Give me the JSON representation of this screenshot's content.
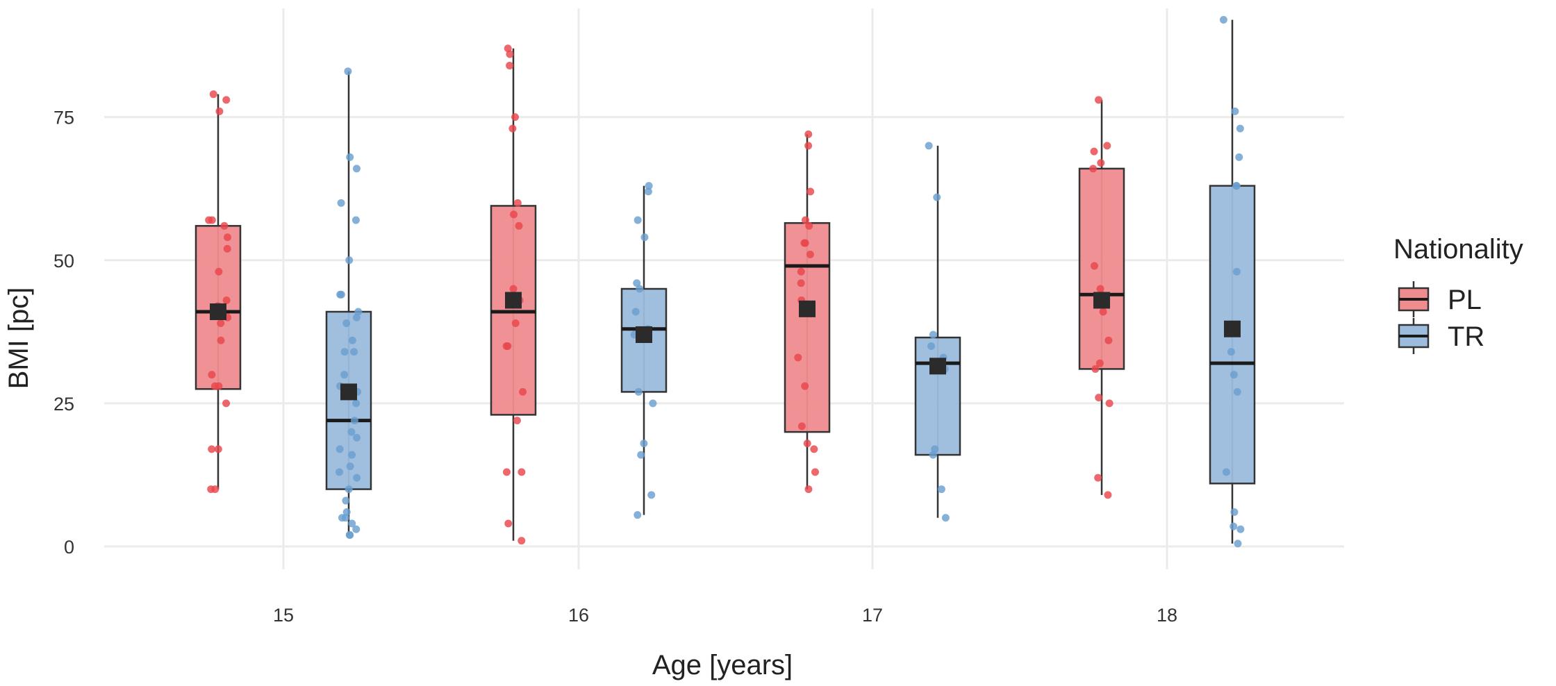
{
  "chart_data": {
    "type": "boxplot",
    "xlabel": "Age [years]",
    "ylabel": "BMI [pc]",
    "x_categories": [
      "15",
      "16",
      "17",
      "18"
    ],
    "y_ticks": [
      0,
      25,
      50,
      75
    ],
    "y_range": [
      -4,
      94
    ],
    "grid": true,
    "legend": {
      "title": "Nationality",
      "position": "right",
      "entries": [
        {
          "name": "PL",
          "fill": "#ef8c8f",
          "point": "#e8474c"
        },
        {
          "name": "TR",
          "fill": "#9bbcdc",
          "point": "#6a9fd0"
        }
      ]
    },
    "groups": [
      {
        "age": "15",
        "nationality": "PL",
        "min": 10,
        "q1": 27.5,
        "median": 41,
        "q3": 56,
        "max": 79,
        "mean": 41,
        "points": [
          79,
          78,
          76,
          57,
          57,
          56,
          54,
          52,
          48,
          43,
          42,
          40,
          39,
          36,
          30,
          28,
          28,
          25,
          17,
          17,
          10,
          10
        ]
      },
      {
        "age": "15",
        "nationality": "TR",
        "min": 2,
        "q1": 10,
        "median": 22,
        "q3": 41,
        "max": 83,
        "mean": 27,
        "points": [
          83,
          68,
          66,
          60,
          57,
          50,
          44,
          44,
          41,
          40,
          39,
          36,
          34,
          34,
          30,
          28,
          27,
          25,
          22,
          20,
          19,
          17,
          16,
          14,
          13,
          12,
          10,
          8,
          6,
          5,
          5,
          4,
          3,
          2,
          2
        ]
      },
      {
        "age": "16",
        "nationality": "PL",
        "min": 1,
        "q1": 23,
        "median": 41,
        "q3": 59.5,
        "max": 87,
        "mean": 43,
        "points": [
          87,
          86,
          84,
          75,
          73,
          60,
          58,
          56,
          45,
          43,
          39,
          35,
          35,
          27,
          22,
          13,
          13,
          4,
          1
        ]
      },
      {
        "age": "16",
        "nationality": "TR",
        "min": 5.5,
        "q1": 27,
        "median": 38,
        "q3": 45,
        "max": 63,
        "mean": 37,
        "points": [
          63,
          62,
          57,
          54,
          46,
          45,
          41,
          38,
          37,
          27,
          25,
          18,
          16,
          9,
          5.5
        ]
      },
      {
        "age": "17",
        "nationality": "PL",
        "min": 10,
        "q1": 20,
        "median": 49,
        "q3": 56.5,
        "max": 72,
        "mean": 41.5,
        "points": [
          72,
          70,
          62,
          57,
          56,
          53,
          53,
          51,
          48,
          46,
          43,
          33,
          28,
          21,
          18,
          17,
          13,
          10
        ]
      },
      {
        "age": "17",
        "nationality": "TR",
        "min": 5,
        "q1": 16,
        "median": 32,
        "q3": 36.5,
        "max": 70,
        "mean": 31.5,
        "points": [
          70,
          61,
          37,
          35,
          33,
          31,
          17,
          16,
          10,
          5
        ]
      },
      {
        "age": "18",
        "nationality": "PL",
        "min": 9,
        "q1": 31,
        "median": 44,
        "q3": 66,
        "max": 78,
        "mean": 43,
        "points": [
          78,
          70,
          69,
          67,
          66,
          49,
          45,
          44,
          41,
          36,
          32,
          31,
          26,
          25,
          12,
          9
        ]
      },
      {
        "age": "18",
        "nationality": "TR",
        "min": 0.5,
        "q1": 11,
        "median": 32,
        "q3": 63,
        "max": 92,
        "mean": 38,
        "points": [
          92,
          76,
          73,
          68,
          63,
          63,
          48,
          34,
          30,
          27,
          13,
          6,
          3.5,
          3,
          0.5
        ]
      }
    ]
  }
}
